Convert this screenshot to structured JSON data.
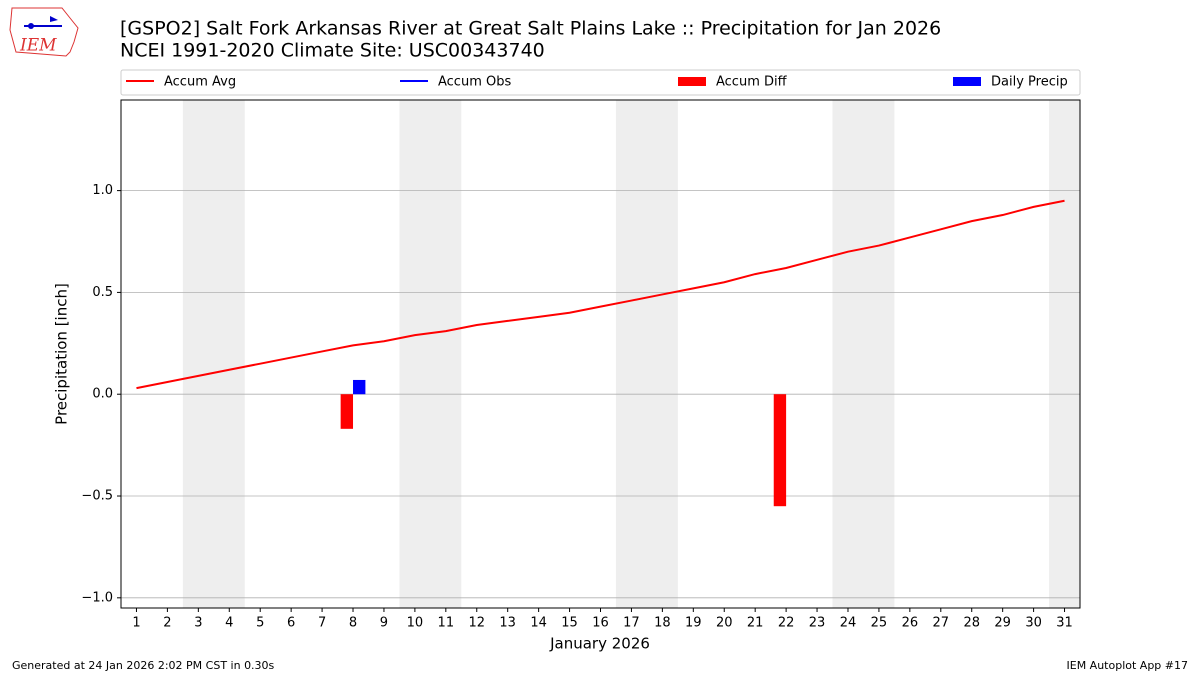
{
  "logo_text": "IEM",
  "footer_left": "Generated at 24 Jan 2026 2:02 PM CST in 0.30s",
  "footer_right": "IEM Autoplot App #17",
  "chart_data": {
    "type": "line_bar",
    "title": "[GSPO2] Salt Fork Arkansas River at Great Salt Plains Lake :: Precipitation for Jan 2026",
    "subtitle": "NCEI 1991-2020 Climate Site: USC00343740",
    "xlabel": "January 2026",
    "ylabel": "Precipitation [inch]",
    "x": [
      1,
      2,
      3,
      4,
      5,
      6,
      7,
      8,
      9,
      10,
      11,
      12,
      13,
      14,
      15,
      16,
      17,
      18,
      19,
      20,
      21,
      22,
      23,
      24,
      25,
      26,
      27,
      28,
      29,
      30,
      31
    ],
    "xlim": [
      0.5,
      31.5
    ],
    "xticks": [
      1,
      2,
      3,
      4,
      5,
      6,
      7,
      8,
      9,
      10,
      11,
      12,
      13,
      14,
      15,
      16,
      17,
      18,
      19,
      20,
      21,
      22,
      23,
      24,
      25,
      26,
      27,
      28,
      29,
      30,
      31
    ],
    "ylim": [
      -1.05,
      1.445
    ],
    "yticks": [
      {
        "value": -1.0,
        "label": "−1.0"
      },
      {
        "value": -0.5,
        "label": "−0.5"
      },
      {
        "value": 0,
        "label": "0.0"
      },
      {
        "value": 0.5,
        "label": "0.5"
      },
      {
        "value": 1.0,
        "label": "1.0"
      }
    ],
    "grid": true,
    "shaded_spans": [
      [
        2.5,
        4.5
      ],
      [
        9.5,
        11.5
      ],
      [
        16.5,
        18.5
      ],
      [
        23.5,
        25.5
      ],
      [
        30.5,
        31.5
      ]
    ],
    "shade_color": "#eeeeee",
    "series": [
      {
        "name": "Accum Avg",
        "kind": "line",
        "color": "#ff0000",
        "values": [
          0.03,
          0.06,
          0.09,
          0.12,
          0.15,
          0.18,
          0.21,
          0.24,
          0.26,
          0.29,
          0.31,
          0.34,
          0.36,
          0.38,
          0.4,
          0.43,
          0.46,
          0.49,
          0.52,
          0.55,
          0.59,
          0.62,
          0.66,
          0.7,
          0.73,
          0.77,
          0.81,
          0.85,
          0.88,
          0.92,
          0.95
        ]
      },
      {
        "name": "Accum Obs",
        "kind": "line",
        "color": "#0000ff",
        "values": [
          null,
          null,
          null,
          null,
          null,
          null,
          null,
          null,
          null,
          null,
          null,
          null,
          null,
          null,
          null,
          null,
          null,
          null,
          null,
          null,
          null,
          null,
          null,
          null,
          null,
          null,
          null,
          null,
          null,
          null,
          null
        ]
      },
      {
        "name": "Accum Diff",
        "kind": "bar",
        "offset": -0.4,
        "width": 0.4,
        "color": "#ff0000",
        "values": [
          null,
          null,
          null,
          null,
          null,
          null,
          null,
          -0.17,
          null,
          null,
          null,
          null,
          null,
          null,
          null,
          null,
          null,
          null,
          null,
          null,
          null,
          -0.55,
          null,
          null,
          null,
          null,
          null,
          null,
          null,
          null,
          null
        ]
      },
      {
        "name": "Daily Precip",
        "kind": "bar",
        "offset": 0,
        "width": 0.4,
        "color": "#0000ff",
        "values": [
          null,
          null,
          null,
          null,
          null,
          null,
          null,
          0.07,
          null,
          null,
          null,
          null,
          null,
          null,
          null,
          null,
          null,
          null,
          null,
          null,
          null,
          null,
          null,
          null,
          null,
          null,
          null,
          null,
          null,
          null,
          null
        ]
      }
    ]
  }
}
